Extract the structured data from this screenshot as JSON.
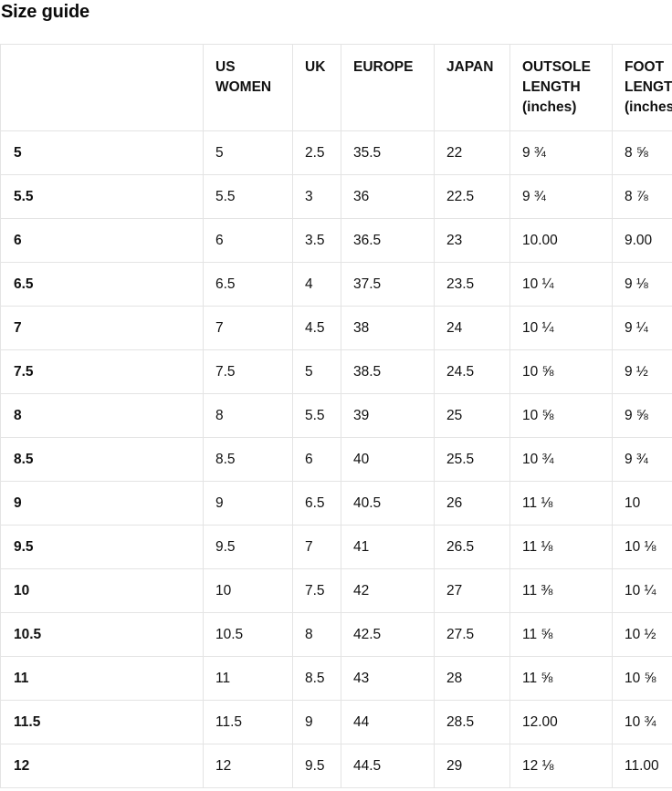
{
  "page": {
    "title": "Size guide"
  },
  "table": {
    "columns": [
      "",
      "US WOMEN",
      "UK",
      "EUROPE",
      "JAPAN",
      "OUTSOLE LENGTH (inches)",
      "FOOT LENGTH (inches)"
    ],
    "rows": [
      {
        "label": "5",
        "values": [
          "5",
          "2.5",
          "35.5",
          "22",
          "9 ¾",
          "8 ⅝"
        ]
      },
      {
        "label": "5.5",
        "values": [
          "5.5",
          "3",
          "36",
          "22.5",
          "9 ¾",
          "8 ⅞"
        ]
      },
      {
        "label": "6",
        "values": [
          "6",
          "3.5",
          "36.5",
          "23",
          "10.00",
          "9.00"
        ]
      },
      {
        "label": "6.5",
        "values": [
          "6.5",
          "4",
          "37.5",
          "23.5",
          "10 ¼",
          "9 ⅛"
        ]
      },
      {
        "label": "7",
        "values": [
          "7",
          "4.5",
          "38",
          "24",
          "10 ¼",
          "9 ¼"
        ]
      },
      {
        "label": "7.5",
        "values": [
          "7.5",
          "5",
          "38.5",
          "24.5",
          "10 ⅝",
          "9 ½"
        ]
      },
      {
        "label": "8",
        "values": [
          "8",
          "5.5",
          "39",
          "25",
          "10 ⅝",
          "9 ⅝"
        ]
      },
      {
        "label": "8.5",
        "values": [
          "8.5",
          "6",
          "40",
          "25.5",
          "10 ¾",
          "9 ¾"
        ]
      },
      {
        "label": "9",
        "values": [
          "9",
          "6.5",
          "40.5",
          "26",
          "11 ⅛",
          "10"
        ]
      },
      {
        "label": "9.5",
        "values": [
          "9.5",
          "7",
          "41",
          "26.5",
          "11 ⅛",
          "10 ⅛"
        ]
      },
      {
        "label": "10",
        "values": [
          "10",
          "7.5",
          "42",
          "27",
          "11 ⅜",
          "10 ¼"
        ]
      },
      {
        "label": "10.5",
        "values": [
          "10.5",
          "8",
          "42.5",
          "27.5",
          "11 ⅝",
          "10 ½"
        ]
      },
      {
        "label": "11",
        "values": [
          "11",
          "8.5",
          "43",
          "28",
          "11 ⅝",
          "10 ⅝"
        ]
      },
      {
        "label": "11.5",
        "values": [
          "11.5",
          "9",
          "44",
          "28.5",
          "12.00",
          "10 ¾"
        ]
      },
      {
        "label": "12",
        "values": [
          "12",
          "9.5",
          "44.5",
          "29",
          "12 ⅛",
          "11.00"
        ]
      }
    ]
  }
}
